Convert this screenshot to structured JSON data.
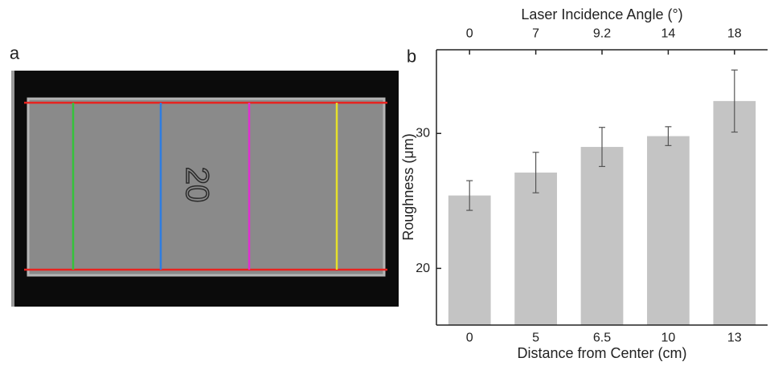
{
  "panel_a": {
    "label": "a",
    "engraving": "20"
  },
  "chart_data": {
    "type": "bar",
    "panel_label": "b",
    "x_label": "Distance from Center (cm)",
    "x2_label": "Laser Incidence Angle (°)",
    "y_label": "Roughness (μm)",
    "categories": [
      "0",
      "5",
      "6.5",
      "10",
      "13"
    ],
    "top_categories": [
      "0",
      "7",
      "9.2",
      "14",
      "18"
    ],
    "series": [
      {
        "color": "#c4c4c4",
        "values": [
          25.4,
          27.1,
          29.0,
          29.8,
          32.4
        ],
        "errors": [
          1.1,
          1.5,
          1.45,
          0.7,
          2.3
        ]
      }
    ],
    "ylim": [
      15.8,
      36.2
    ],
    "yticks": [
      20,
      30
    ],
    "grid": false
  }
}
